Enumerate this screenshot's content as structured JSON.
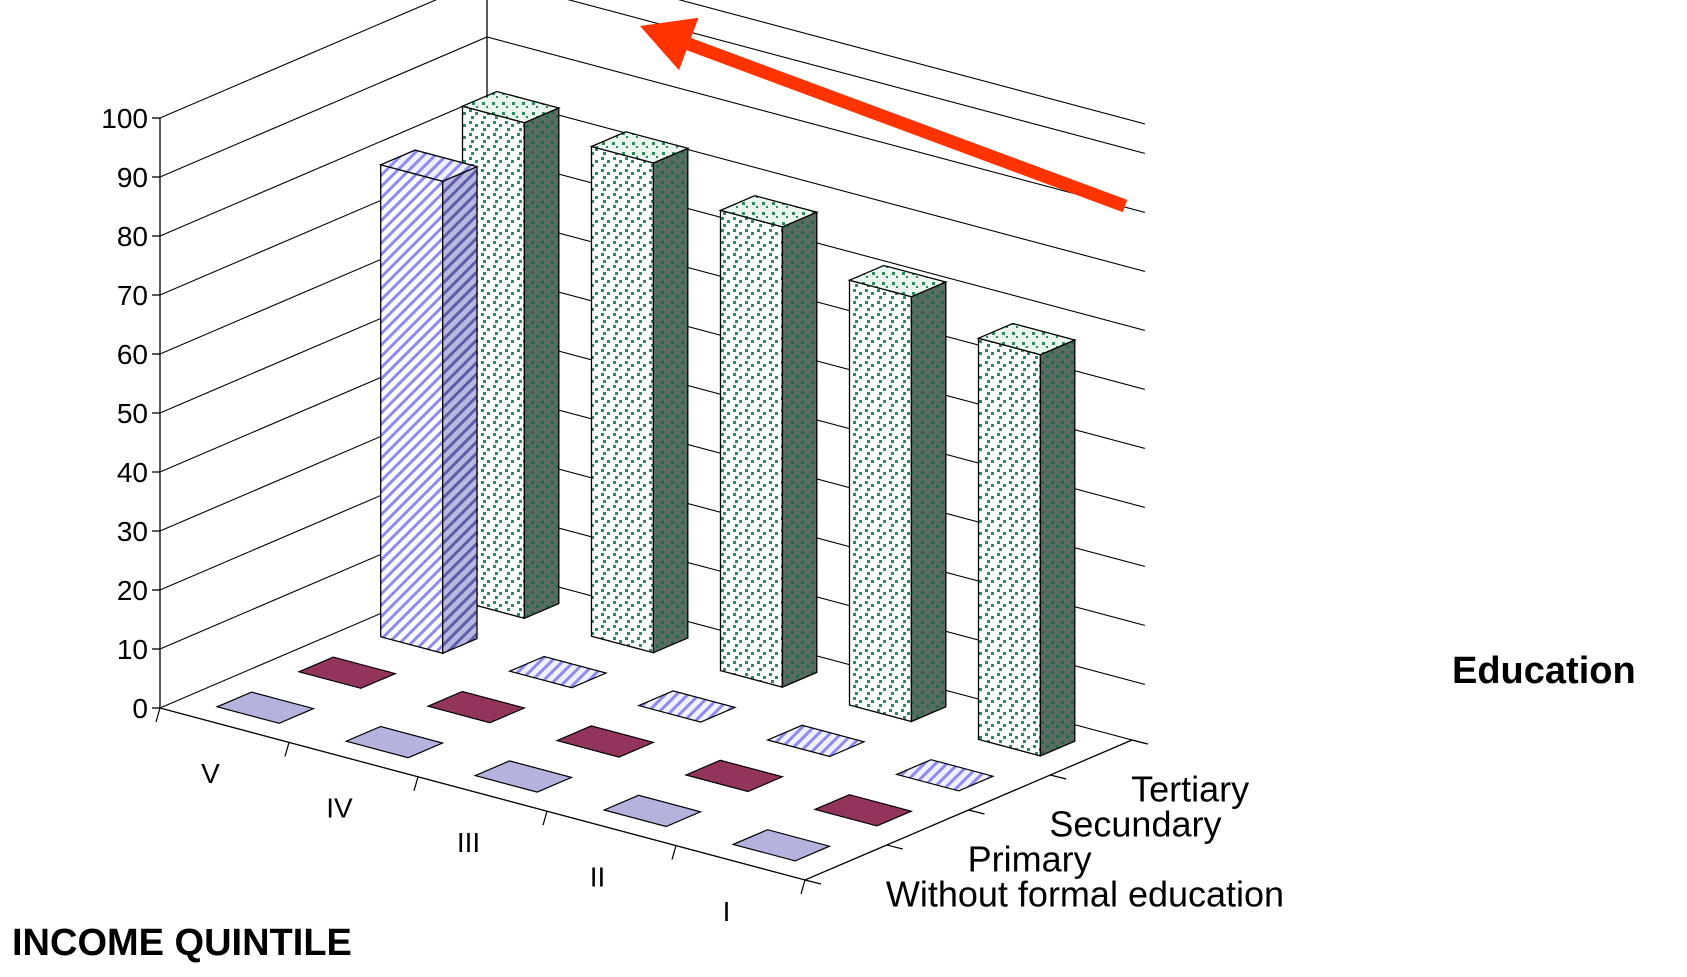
{
  "chart_data": {
    "type": "bar",
    "subtype": "3d-column",
    "title": "",
    "xlabel": "INCOME QUINTILE",
    "zlabel": "Education",
    "ylabel": "",
    "ylim": [
      0,
      100
    ],
    "yticks": [
      "0",
      "10",
      "20",
      "30",
      "40",
      "50",
      "60",
      "70",
      "80",
      "90",
      "100"
    ],
    "categories": [
      "V",
      "IV",
      "III",
      "II",
      "I"
    ],
    "series": [
      {
        "name": "Without formal education",
        "values": [
          0,
          0,
          0,
          0,
          0
        ]
      },
      {
        "name": "Primary",
        "values": [
          0,
          0,
          0,
          0,
          0
        ]
      },
      {
        "name": "Secundary",
        "values": [
          80,
          0,
          0,
          0,
          0
        ]
      },
      {
        "name": "Tertiary",
        "values": [
          84,
          83,
          78,
          72,
          68
        ]
      }
    ],
    "grid": true,
    "legend": "none",
    "colors": {
      "without_formal_education": "#9999cc",
      "primary": "#7a2145",
      "secundary": "#8c8cf0",
      "tertiary": "#2e8b57",
      "arrow": "#ff3300"
    },
    "annotation": "red-arrow-upward-trend"
  }
}
